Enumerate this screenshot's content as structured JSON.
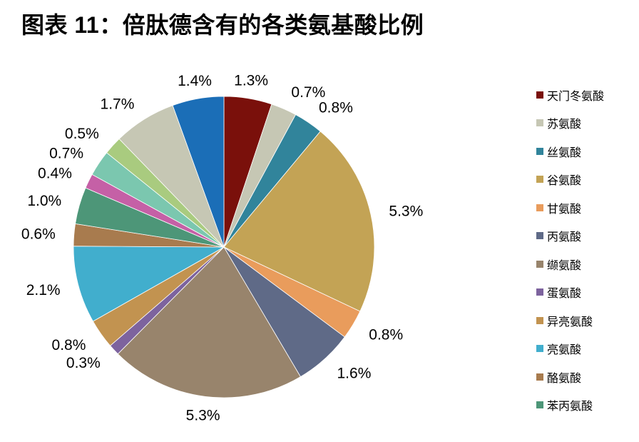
{
  "title": "图表 11：倍肽德含有的各类氨基酸比例",
  "chart_data": {
    "type": "pie",
    "title": "图表 11：倍肽德含有的各类氨基酸比例",
    "unit": "%",
    "direction": "clockwise",
    "start_angle_deg": 0,
    "legend_position": "right",
    "legend_visible_items": 12,
    "slices": [
      {
        "name": "天门冬氨酸",
        "value": 1.3,
        "label": "1.3%",
        "color": "#7A100B",
        "in_legend": true
      },
      {
        "name": "苏氨酸",
        "value": 0.7,
        "label": "0.7%",
        "color": "#C6C7B4",
        "in_legend": true
      },
      {
        "name": "丝氨酸",
        "value": 0.8,
        "label": "0.8%",
        "color": "#31849B",
        "in_legend": true
      },
      {
        "name": "谷氨酸",
        "value": 5.3,
        "label": "5.3%",
        "color": "#C3A355",
        "in_legend": true
      },
      {
        "name": "甘氨酸",
        "value": 0.8,
        "label": "0.8%",
        "color": "#E99C5C",
        "in_legend": true
      },
      {
        "name": "丙氨酸",
        "value": 1.6,
        "label": "1.6%",
        "color": "#5F6A87",
        "in_legend": true
      },
      {
        "name": "缬氨酸",
        "value": 5.3,
        "label": "5.3%",
        "color": "#98846C",
        "in_legend": true
      },
      {
        "name": "蛋氨酸",
        "value": 0.3,
        "label": "0.3%",
        "color": "#7D639E",
        "in_legend": true
      },
      {
        "name": "异亮氨酸",
        "value": 0.8,
        "label": "0.8%",
        "color": "#C29350",
        "in_legend": true
      },
      {
        "name": "亮氨酸",
        "value": 2.1,
        "label": "2.1%",
        "color": "#41AECD",
        "in_legend": true
      },
      {
        "name": "酪氨酸",
        "value": 0.6,
        "label": "0.6%",
        "color": "#A87B4E",
        "in_legend": true
      },
      {
        "name": "苯丙氨酸",
        "value": 1.0,
        "label": "1.0%",
        "color": "#4D9678",
        "in_legend": true
      },
      {
        "name": "",
        "value": 0.4,
        "label": "0.4%",
        "color": "#C560A6",
        "in_legend": false
      },
      {
        "name": "",
        "value": 0.7,
        "label": "0.7%",
        "color": "#7BC7AF",
        "in_legend": false
      },
      {
        "name": "",
        "value": 0.5,
        "label": "0.5%",
        "color": "#A9CB7F",
        "in_legend": false
      },
      {
        "name": "",
        "value": 1.7,
        "label": "1.7%",
        "color": "#C6C7B4",
        "in_legend": false
      },
      {
        "name": "",
        "value": 1.4,
        "label": "1.4%",
        "color": "#1B6EB7",
        "in_legend": false
      }
    ]
  }
}
